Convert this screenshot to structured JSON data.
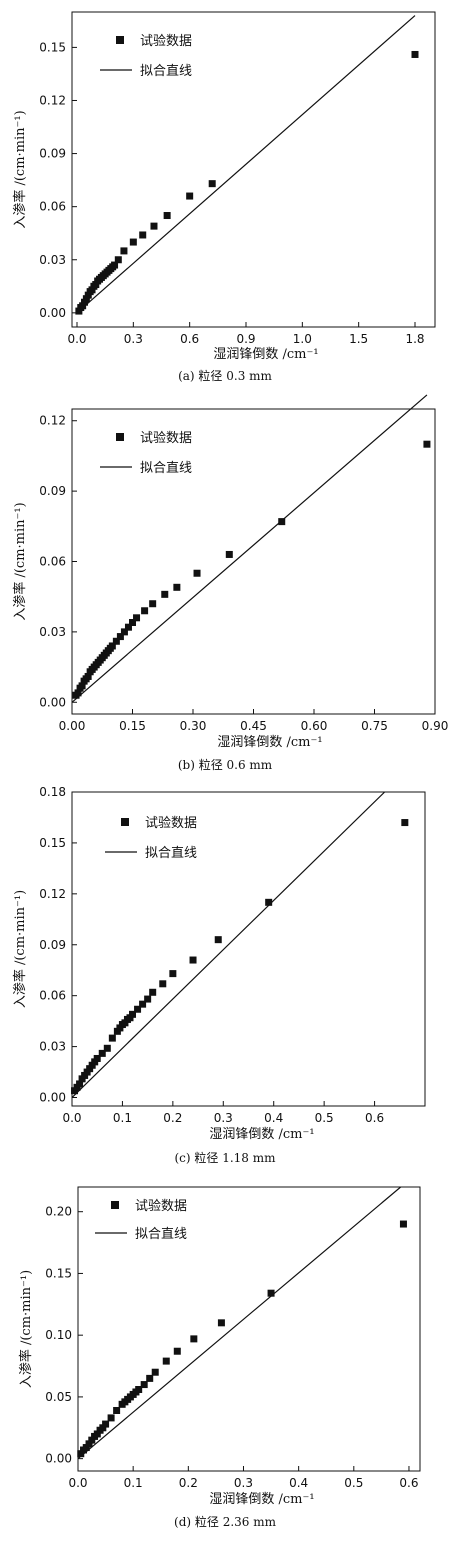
{
  "chart_data": [
    {
      "type": "scatter",
      "caption": "(a) 粒径 0.3 mm",
      "xlabel": "湿润锋倒数 /cm⁻¹",
      "ylabel": "入渗率 /(cm·min⁻¹)",
      "xlim": [
        0,
        1.9
      ],
      "ylim": [
        -0.008,
        0.17
      ],
      "xticks": [
        "0.0",
        "0.3",
        "0.6",
        "0.9",
        "1.0",
        "1.5",
        "1.8"
      ],
      "yticks": [
        "0.00",
        "0.03",
        "0.06",
        "0.09",
        "0.12",
        "0.15"
      ],
      "legend": [
        "试验数据",
        "拟合直线"
      ],
      "series": [
        {
          "name": "试验数据",
          "x": [
            0.01,
            0.02,
            0.03,
            0.04,
            0.05,
            0.06,
            0.07,
            0.08,
            0.09,
            0.1,
            0.11,
            0.12,
            0.13,
            0.14,
            0.15,
            0.16,
            0.17,
            0.18,
            0.19,
            0.2,
            0.22,
            0.25,
            0.3,
            0.35,
            0.41,
            0.48,
            0.6,
            0.72,
            1.82
          ],
          "y": [
            0.001,
            0.003,
            0.004,
            0.006,
            0.008,
            0.01,
            0.012,
            0.013,
            0.015,
            0.016,
            0.018,
            0.019,
            0.02,
            0.021,
            0.022,
            0.023,
            0.024,
            0.025,
            0.026,
            0.027,
            0.03,
            0.035,
            0.04,
            0.044,
            0.049,
            0.055,
            0.066,
            0.073,
            0.146
          ]
        },
        {
          "name": "拟合直线",
          "x": [
            0,
            1.82
          ],
          "y": [
            0,
            0.168
          ]
        }
      ]
    },
    {
      "type": "scatter",
      "caption": "(b) 粒径 0.6 mm",
      "xlabel": "湿润锋倒数 /cm⁻¹",
      "ylabel": "入渗率 /(cm·min⁻¹)",
      "xlim": [
        0,
        0.9
      ],
      "ylim": [
        -0.005,
        0.125
      ],
      "xticks": [
        "0.00",
        "0.15",
        "0.30",
        "0.45",
        "0.60",
        "0.75",
        "0.90"
      ],
      "yticks": [
        "0.00",
        "0.03",
        "0.06",
        "0.09",
        "0.12"
      ],
      "legend": [
        "试验数据",
        "拟合直线"
      ],
      "series": [
        {
          "name": "试验数据",
          "x": [
            0.01,
            0.015,
            0.02,
            0.025,
            0.03,
            0.035,
            0.04,
            0.045,
            0.05,
            0.055,
            0.06,
            0.065,
            0.07,
            0.075,
            0.08,
            0.085,
            0.09,
            0.095,
            0.1,
            0.11,
            0.12,
            0.13,
            0.14,
            0.15,
            0.16,
            0.18,
            0.2,
            0.23,
            0.26,
            0.31,
            0.39,
            0.52,
            0.88
          ],
          "y": [
            0.003,
            0.004,
            0.006,
            0.007,
            0.009,
            0.01,
            0.011,
            0.013,
            0.014,
            0.015,
            0.016,
            0.017,
            0.018,
            0.019,
            0.02,
            0.021,
            0.022,
            0.023,
            0.024,
            0.026,
            0.028,
            0.03,
            0.032,
            0.034,
            0.036,
            0.039,
            0.042,
            0.046,
            0.049,
            0.055,
            0.063,
            0.077,
            0.11
          ]
        },
        {
          "name": "拟合直线",
          "x": [
            0,
            0.88
          ],
          "y": [
            0,
            0.131
          ]
        }
      ]
    },
    {
      "type": "scatter",
      "caption": "(c) 粒径 1.18 mm",
      "xlabel": "湿润锋倒数 /cm⁻¹",
      "ylabel": "入渗率 /(cm·min⁻¹)",
      "xlim": [
        0,
        0.7
      ],
      "ylim": [
        -0.005,
        0.18
      ],
      "xticks": [
        "0.0",
        "0.1",
        "0.2",
        "0.3",
        "0.4",
        "0.5",
        "0.6"
      ],
      "yticks": [
        "0.00",
        "0.03",
        "0.06",
        "0.09",
        "0.12",
        "0.15",
        "0.18"
      ],
      "legend": [
        "试验数据",
        "拟合直线"
      ],
      "series": [
        {
          "name": "试验数据",
          "x": [
            0.005,
            0.01,
            0.015,
            0.02,
            0.025,
            0.03,
            0.035,
            0.04,
            0.045,
            0.05,
            0.06,
            0.07,
            0.08,
            0.09,
            0.095,
            0.1,
            0.105,
            0.11,
            0.115,
            0.12,
            0.13,
            0.14,
            0.15,
            0.16,
            0.18,
            0.2,
            0.24,
            0.29,
            0.39,
            0.66
          ],
          "y": [
            0.004,
            0.006,
            0.008,
            0.011,
            0.013,
            0.015,
            0.017,
            0.019,
            0.021,
            0.023,
            0.026,
            0.029,
            0.035,
            0.039,
            0.041,
            0.043,
            0.044,
            0.046,
            0.047,
            0.049,
            0.052,
            0.055,
            0.058,
            0.062,
            0.067,
            0.073,
            0.081,
            0.093,
            0.115,
            0.162
          ]
        },
        {
          "name": "拟合直线",
          "x": [
            0,
            0.62
          ],
          "y": [
            0,
            0.18
          ]
        }
      ]
    },
    {
      "type": "scatter",
      "caption": "(d) 粒径 2.36 mm",
      "xlabel": "湿润锋倒数 /cm⁻¹",
      "ylabel": "入渗率 /(cm·min⁻¹)",
      "xlim": [
        0,
        0.62
      ],
      "ylim": [
        -0.01,
        0.22
      ],
      "xticks": [
        "0.0",
        "0.1",
        "0.2",
        "0.3",
        "0.4",
        "0.5",
        "0.6"
      ],
      "yticks": [
        "0.00",
        "0.05",
        "0.10",
        "0.15",
        "0.20"
      ],
      "legend": [
        "试验数据",
        "拟合直线"
      ],
      "series": [
        {
          "name": "试验数据",
          "x": [
            0.005,
            0.01,
            0.015,
            0.02,
            0.025,
            0.03,
            0.035,
            0.04,
            0.045,
            0.05,
            0.06,
            0.07,
            0.08,
            0.085,
            0.09,
            0.095,
            0.1,
            0.105,
            0.11,
            0.12,
            0.13,
            0.14,
            0.16,
            0.18,
            0.21,
            0.26,
            0.35,
            0.59
          ],
          "y": [
            0.004,
            0.007,
            0.009,
            0.012,
            0.015,
            0.018,
            0.02,
            0.023,
            0.025,
            0.028,
            0.033,
            0.039,
            0.044,
            0.046,
            0.048,
            0.05,
            0.052,
            0.054,
            0.056,
            0.06,
            0.065,
            0.07,
            0.079,
            0.087,
            0.097,
            0.11,
            0.134,
            0.19
          ]
        },
        {
          "name": "拟合直线",
          "x": [
            0,
            0.585
          ],
          "y": [
            0,
            0.22
          ]
        }
      ]
    }
  ]
}
